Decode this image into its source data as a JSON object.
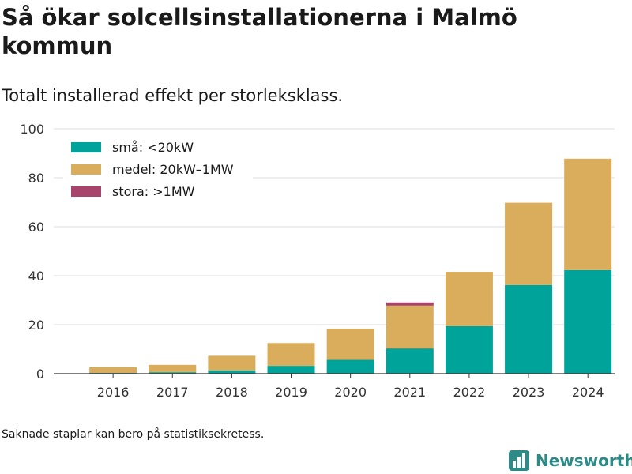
{
  "title": "Så ökar solcellsinstallationerna i Malmö kommun",
  "subtitle": "Totalt installerad effekt per storleksklass.",
  "footnote": "Saknade staplar kan bero på statistiksekretess.",
  "brand": {
    "name": "Newsworthy",
    "icon": "bar-chart-logo-icon",
    "color": "#2e8a86"
  },
  "chart_data": {
    "type": "bar",
    "stacked": true,
    "categories": [
      "2016",
      "2017",
      "2018",
      "2019",
      "2020",
      "2021",
      "2022",
      "2023",
      "2024"
    ],
    "series": [
      {
        "name": "små: <20kW",
        "color": "#00a39a",
        "values": [
          0.3,
          0.6,
          1.3,
          3.2,
          5.7,
          10.3,
          19.4,
          36.2,
          42.3
        ]
      },
      {
        "name": "medel: 20kW–1MW",
        "color": "#d9ad5b",
        "values": [
          2.4,
          3.0,
          6.0,
          9.3,
          12.7,
          17.5,
          22.2,
          33.6,
          45.5
        ]
      },
      {
        "name": "stora: >1MW",
        "color": "#a8436b",
        "values": [
          0,
          0,
          0,
          0,
          0,
          1.3,
          0,
          0,
          0
        ]
      }
    ],
    "ylim": [
      0,
      100
    ],
    "yticks": [
      0,
      20,
      40,
      60,
      80,
      100
    ],
    "grid": true,
    "legend": "top-left",
    "xlabel": "",
    "ylabel": ""
  }
}
